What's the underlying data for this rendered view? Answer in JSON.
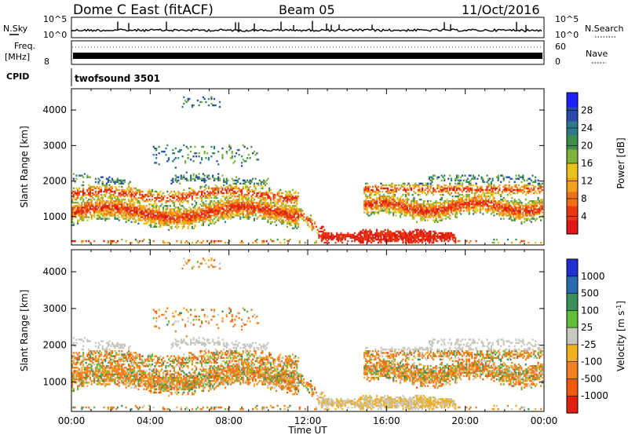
{
  "header": {
    "title": "Dome C East (fitACF)",
    "beam": "Beam 05",
    "date": "11/Oct/2016"
  },
  "top_panels": {
    "nsky_label": "N.Sky",
    "nsearch_label": "N.Search",
    "noise_ticks": [
      "10^5",
      "10^0"
    ],
    "freq_label": "Freq.",
    "freq_unit": "[MHz]",
    "freq_ticks": [
      "8"
    ],
    "nave_label": "Nave",
    "nave_ticks": [
      "60",
      "0"
    ],
    "cpid_label": "CPID",
    "cpid_value": "twofsound 3501"
  },
  "chart_data": [
    {
      "type": "heatmap",
      "name": "power",
      "ylabel": "Slant Range [km]",
      "yticks": [
        1000,
        2000,
        3000,
        4000
      ],
      "ylim": [
        200,
        4600
      ],
      "xlim": [
        0,
        24
      ],
      "xticks": [
        "00:00",
        "04:00",
        "08:00",
        "12:00",
        "16:00",
        "20:00",
        "00:00"
      ],
      "colorbar": {
        "label": "Power [dB]",
        "ticks": [
          "4",
          "8",
          "12",
          "16",
          "20",
          "24",
          "28"
        ],
        "colors": [
          "#1f1fff",
          "#2a4aa8",
          "#2f7a8a",
          "#3e8f4a",
          "#7fb23a",
          "#e8c41a",
          "#f2a020",
          "#f07018",
          "#e83a10",
          "#e01818"
        ]
      }
    },
    {
      "type": "heatmap",
      "name": "velocity",
      "ylabel": "Slant Range [km]",
      "yticks": [
        1000,
        2000,
        3000,
        4000
      ],
      "ylim": [
        200,
        4600
      ],
      "xlim": [
        0,
        24
      ],
      "xticks": [
        "00:00",
        "04:00",
        "08:00",
        "12:00",
        "16:00",
        "20:00",
        "00:00"
      ],
      "xlabel": "Time UT",
      "colorbar": {
        "label": "Velocity [m s",
        "label_sup": "-1",
        "label_end": "]",
        "ticks": [
          "1000",
          "500",
          "100",
          "25",
          "-25",
          "-100",
          "-500",
          "-1000"
        ],
        "colors": [
          "#1f2fd0",
          "#2a6ab0",
          "#3a8f5a",
          "#5fbf3a",
          "#c8c8c0",
          "#f0b020",
          "#f08020",
          "#f05a10",
          "#e02010"
        ]
      }
    }
  ]
}
